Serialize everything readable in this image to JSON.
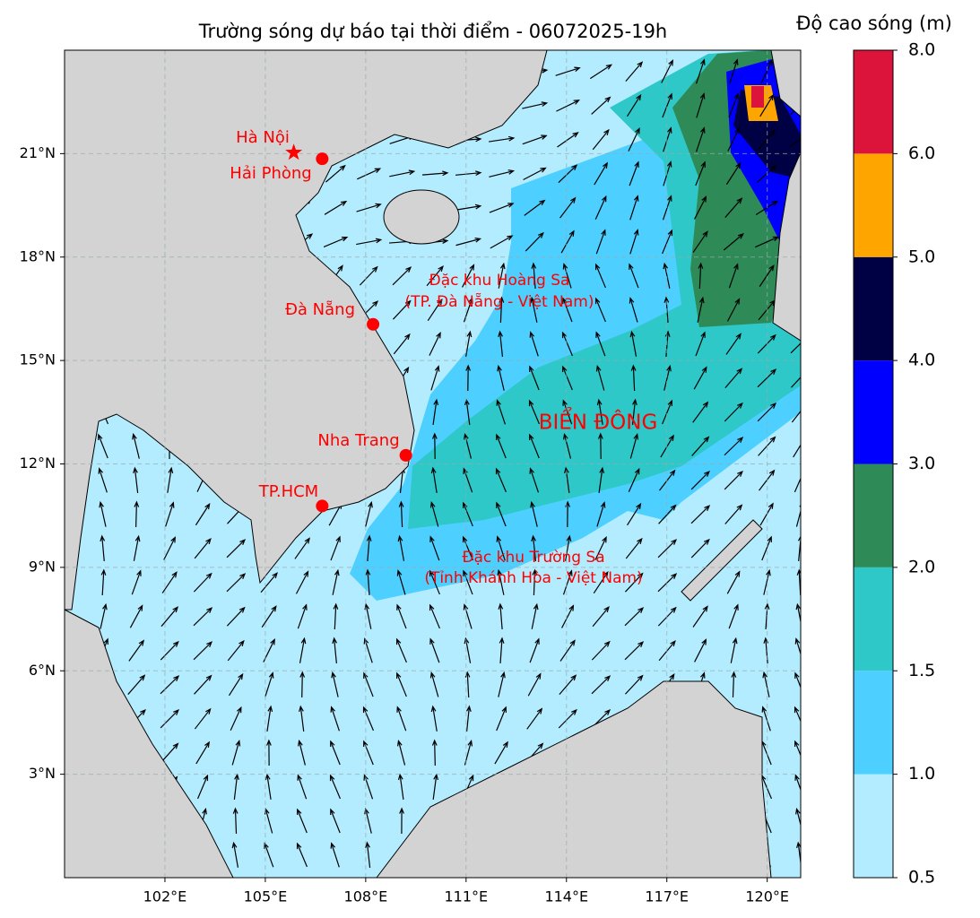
{
  "map": {
    "title": "Trường sóng dự báo tại thời điểm - 06072025-19h",
    "xlim": [
      99,
      121
    ],
    "ylim": [
      0,
      24
    ],
    "xticks": [
      {
        "value": 102,
        "label": "102°E"
      },
      {
        "value": 105,
        "label": "105°E"
      },
      {
        "value": 108,
        "label": "108°E"
      },
      {
        "value": 111,
        "label": "111°E"
      },
      {
        "value": 114,
        "label": "114°E"
      },
      {
        "value": 117,
        "label": "117°E"
      },
      {
        "value": 120,
        "label": "120°E"
      }
    ],
    "yticks": [
      {
        "value": 3,
        "label": "3°N"
      },
      {
        "value": 6,
        "label": "6°N"
      },
      {
        "value": 9,
        "label": "9°N"
      },
      {
        "value": 12,
        "label": "12°N"
      },
      {
        "value": 15,
        "label": "15°N"
      },
      {
        "value": 18,
        "label": "18°N"
      },
      {
        "value": 21,
        "label": "21°N"
      }
    ],
    "grid": true,
    "places": [
      {
        "label": "Hà Nội",
        "lon": 105.85,
        "lat": 21.03,
        "marker": "star"
      },
      {
        "label": "Hải Phòng",
        "lon": 106.7,
        "lat": 20.85,
        "marker": "dot"
      },
      {
        "label": "Đà Nẵng",
        "lon": 108.22,
        "lat": 16.05,
        "marker": "dot"
      },
      {
        "label": "Nha Trang",
        "lon": 109.2,
        "lat": 12.25,
        "marker": "dot"
      },
      {
        "label": "TP.HCM",
        "lon": 106.7,
        "lat": 10.78,
        "marker": "dot"
      }
    ],
    "regions": [
      "Đặc khu Hoàng Sa",
      "(TP. Đà Nẵng - Việt Nam)",
      "BIỂN ĐÔNG",
      "Đặc khu Trường Sa",
      "(Tỉnh Khánh Hòa - Việt Nam)"
    ]
  },
  "colorbar": {
    "label": "Độ cao sóng (m)",
    "ticks": [
      0.5,
      {
        "value": 1,
        "label": "1.0"
      },
      1.5,
      {
        "value": 2,
        "label": "2.0"
      },
      {
        "value": 3,
        "label": "3.0"
      },
      {
        "value": 4,
        "label": "4.0"
      },
      {
        "value": 5,
        "label": "5.0"
      },
      {
        "value": 6,
        "label": "6.0"
      },
      {
        "value": 8,
        "label": "8.0"
      }
    ],
    "colors": [
      "#b4ecff",
      "#4dd0ff",
      "#2ec8c8",
      "#2e8b57",
      "#0000ff",
      "#000044",
      "#ffa500",
      "#dc143c"
    ]
  }
}
